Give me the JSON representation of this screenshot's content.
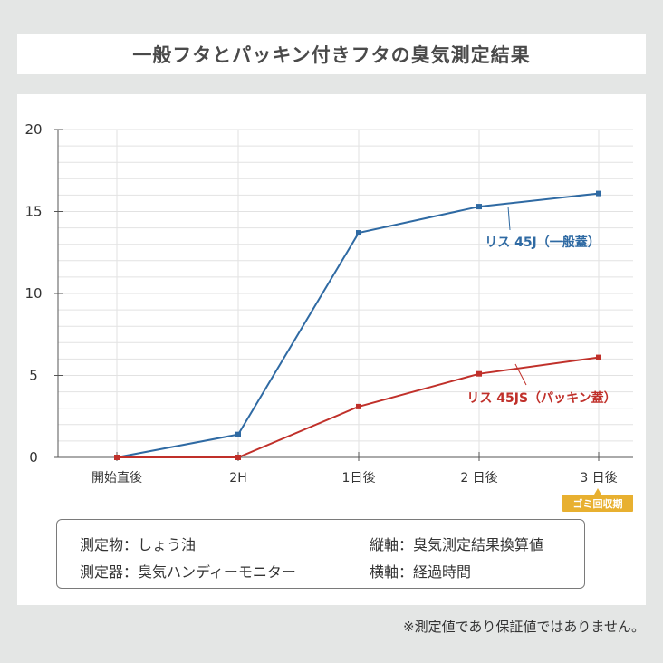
{
  "title": "一般フタとパッキン付きフタの臭気測定結果",
  "chart_data": {
    "type": "line",
    "categories": [
      "開始直後",
      "2H",
      "1日後",
      "2 日後",
      "3 日後"
    ],
    "ylim": [
      0,
      20
    ],
    "yticks": [
      "0",
      "5",
      "10",
      "15",
      "20"
    ],
    "grid": true,
    "series": [
      {
        "name": "リス 45J（一般蓋）",
        "color": "#2f6aa3",
        "values": [
          0,
          1.4,
          13.7,
          15.3,
          16.1
        ]
      },
      {
        "name": "リス 45JS（パッキン蓋）",
        "color": "#c0302a",
        "values": [
          0,
          0,
          3.1,
          5.1,
          6.1
        ]
      }
    ]
  },
  "badge": {
    "label": "ゴミ回収期",
    "color": "#e8b030"
  },
  "info": {
    "subject": "測定物：しょう油",
    "instrument": "測定器：臭気ハンディーモニター",
    "vertical_axis": "縦軸：臭気測定結果換算値",
    "horizontal_axis": "横軸：経過時間"
  },
  "footnote": "※測定値であり保証値ではありません。"
}
